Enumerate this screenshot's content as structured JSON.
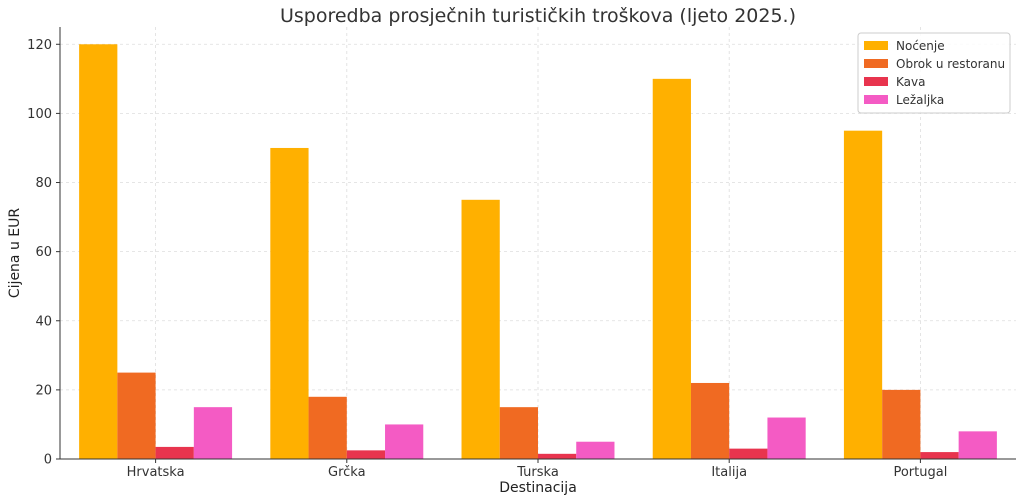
{
  "chart_data": {
    "type": "bar",
    "title": "Usporedba prosječnih turističkih troškova (ljeto 2025.)",
    "xlabel": "Destinacija",
    "ylabel": "Cijena u EUR",
    "categories": [
      "Hrvatska",
      "Grčka",
      "Turska",
      "Italija",
      "Portugal"
    ],
    "series": [
      {
        "name": "Noćenje",
        "color": "#FFB000",
        "values": [
          120,
          90,
          75,
          110,
          95
        ]
      },
      {
        "name": "Obrok u restoranu",
        "color": "#F06A22",
        "values": [
          25,
          18,
          15,
          22,
          20
        ]
      },
      {
        "name": "Kava",
        "color": "#E8344E",
        "values": [
          3.5,
          2.5,
          1.5,
          3,
          2
        ]
      },
      {
        "name": "Ležaljka",
        "color": "#F45BC4",
        "values": [
          15,
          10,
          5,
          12,
          8
        ]
      }
    ],
    "ylim": [
      0,
      125
    ],
    "yticks": [
      0,
      20,
      40,
      60,
      80,
      100,
      120
    ],
    "grid": true,
    "legend_position": "top-right"
  }
}
